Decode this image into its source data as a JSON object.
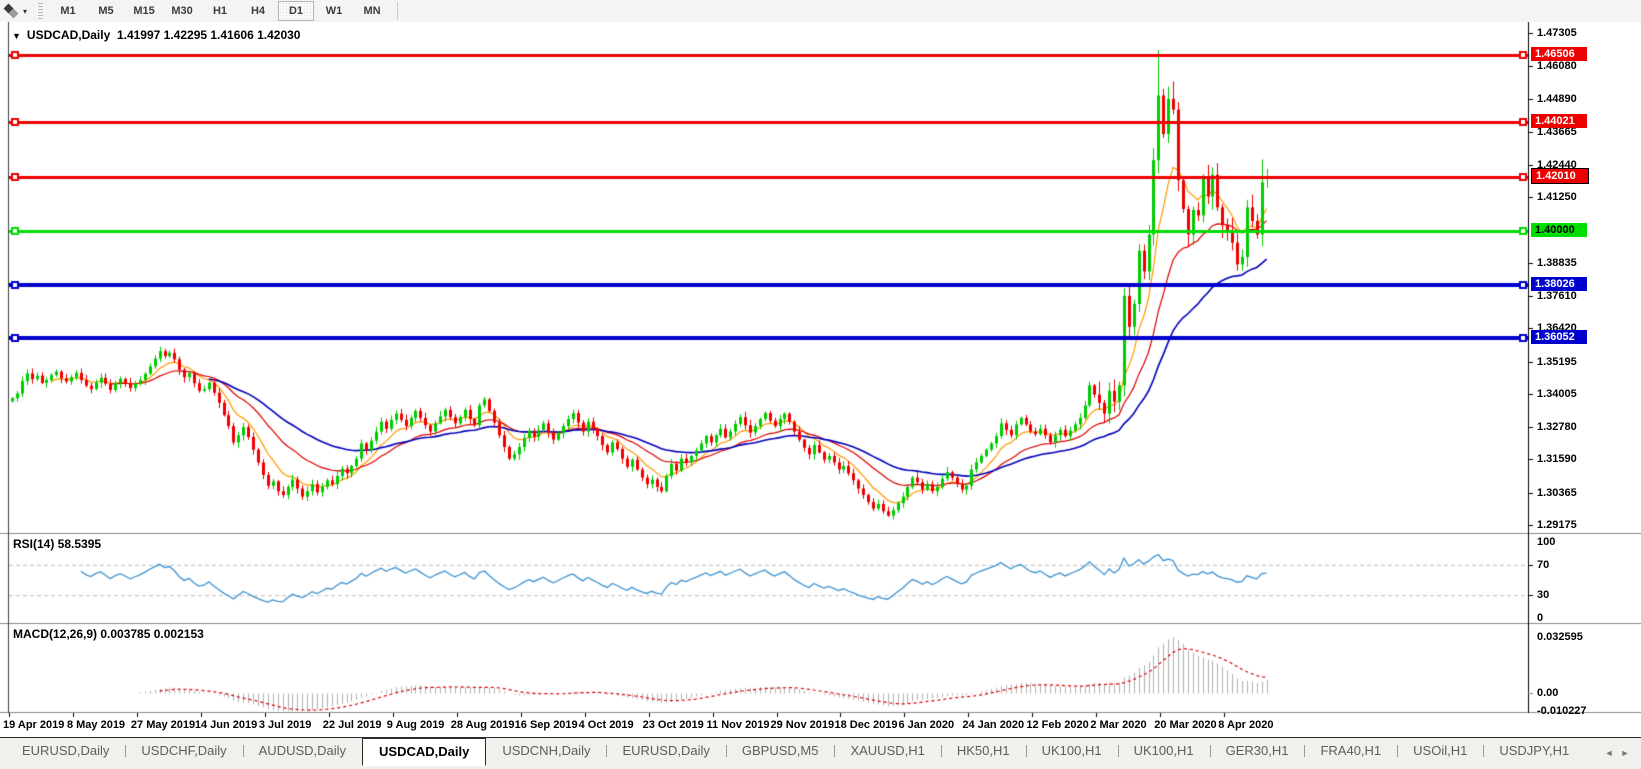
{
  "toolbar": {
    "timeframes": [
      "M1",
      "M5",
      "M15",
      "M30",
      "H1",
      "H4",
      "D1",
      "W1",
      "MN"
    ],
    "active_timeframe": "D1",
    "cursor_icon": "line-studies-cursor",
    "dropdown_icon": "▾"
  },
  "chart": {
    "title": {
      "collapse_icon": "▼",
      "symbol_period": "USDCAD,Daily",
      "ohlc": "1.41997 1.42295 1.41606 1.42030"
    },
    "price_axis_labels": [
      "1.47305",
      "1.46080",
      "1.44890",
      "1.43665",
      "1.42440",
      "1.41250",
      "1.38835",
      "1.37610",
      "1.36420",
      "1.35195",
      "1.34005",
      "1.32780",
      "1.31590",
      "1.30365",
      "1.29175"
    ],
    "h_lines": [
      {
        "label": "1.46506",
        "price": 1.46506,
        "color": "#ee0000",
        "text_color": "#ffffff",
        "width": 3,
        "boxed": false
      },
      {
        "label": "1.44021",
        "price": 1.44021,
        "color": "#ee0000",
        "text_color": "#ffffff",
        "width": 3,
        "boxed": false
      },
      {
        "label": "1.42010",
        "price": 1.4201,
        "color": "#ee0000",
        "text_color": "#ffffff",
        "width": 3,
        "boxed": true
      },
      {
        "label": "1.40000",
        "price": 1.4,
        "color": "#00dd00",
        "text_color": "#000000",
        "width": 3,
        "boxed": false
      },
      {
        "label": "1.38026",
        "price": 1.38026,
        "color": "#0000cc",
        "text_color": "#ffffff",
        "width": 4,
        "boxed": false
      },
      {
        "label": "1.36052",
        "price": 1.36052,
        "color": "#0000cc",
        "text_color": "#ffffff",
        "width": 4,
        "boxed": false
      }
    ],
    "date_labels": [
      "19 Apr 2019",
      "8 May 2019",
      "27 May 2019",
      "14 Jun 2019",
      "3 Jul 2019",
      "22 Jul 2019",
      "9 Aug 2019",
      "28 Aug 2019",
      "16 Sep 2019",
      "4 Oct 2019",
      "23 Oct 2019",
      "11 Nov 2019",
      "29 Nov 2019",
      "18 Dec 2019",
      "6 Jan 2020",
      "24 Jan 2020",
      "12 Feb 2020",
      "2 Mar 2020",
      "20 Mar 2020",
      "8 Apr 2020"
    ]
  },
  "rsi_pane": {
    "label": "RSI(14) 58.5395",
    "axis_labels": [
      "100",
      "70",
      "30",
      "0"
    ],
    "levels": [
      70,
      30
    ],
    "line_color": "#3f93d2"
  },
  "macd_pane": {
    "label": "MACD(12,26,9) 0.003785 0.002153",
    "axis_labels": [
      "0.032595",
      "0.00",
      "-0.010227"
    ],
    "histogram_color": "#b2b2b2",
    "signal_color": "#dd0000"
  },
  "tabs": {
    "items": [
      "EURUSD,Daily",
      "USDCHF,Daily",
      "AUDUSD,Daily",
      "USDCAD,Daily",
      "USDCNH,Daily",
      "EURUSD,Daily",
      "GBPUSD,M5",
      "XAUUSD,H1",
      "HK50,H1",
      "UK100,H1",
      "UK100,H1",
      "GER30,H1",
      "FRA40,H1",
      "USOil,H1",
      "USDJPY,H1"
    ],
    "active_index": 3,
    "scroll_left_icon": "◄",
    "scroll_right_icon": "►"
  },
  "chart_data": {
    "type": "candlestick",
    "symbol": "USDCAD",
    "period": "Daily",
    "x_range": [
      "19 Apr 2019",
      "21 Apr 2020"
    ],
    "ylim": [
      1.29175,
      1.47305
    ],
    "up_color": "#00cc00",
    "down_color": "#ee0000",
    "closes": [
      1.3385,
      1.3402,
      1.3448,
      1.3476,
      1.3455,
      1.3468,
      1.3441,
      1.3452,
      1.347,
      1.3483,
      1.3458,
      1.3446,
      1.3462,
      1.3478,
      1.3452,
      1.3431,
      1.3418,
      1.3442,
      1.346,
      1.3438,
      1.3415,
      1.344,
      1.3456,
      1.3441,
      1.3422,
      1.3438,
      1.3452,
      1.3475,
      1.3502,
      1.3531,
      1.3558,
      1.354,
      1.3552,
      1.3528,
      1.349,
      1.3462,
      1.3478,
      1.344,
      1.3412,
      1.3418,
      1.3442,
      1.3405,
      1.3368,
      1.3322,
      1.3282,
      1.3222,
      1.3248,
      1.3278,
      1.3242,
      1.3195,
      1.3148,
      1.3102,
      1.3062,
      1.3078,
      1.3042,
      1.3028,
      1.3058,
      1.3085,
      1.3052,
      1.3022,
      1.3042,
      1.3068,
      1.3038,
      1.3058,
      1.3082,
      1.3068,
      1.3098,
      1.3125,
      1.3108,
      1.3135,
      1.3162,
      1.3218,
      1.3192,
      1.3228,
      1.3262,
      1.3298,
      1.3272,
      1.3305,
      1.3328,
      1.3305,
      1.3282,
      1.3312,
      1.3338,
      1.3312,
      1.3285,
      1.3262,
      1.3292,
      1.3318,
      1.3342,
      1.3315,
      1.3292,
      1.3315,
      1.3342,
      1.3308,
      1.3285,
      1.3358,
      1.338,
      1.3338,
      1.3295,
      1.3248,
      1.3205,
      1.3162,
      1.3178,
      1.3205,
      1.3238,
      1.3265,
      1.3242,
      1.3268,
      1.3292,
      1.3258,
      1.3232,
      1.3255,
      1.3282,
      1.3308,
      1.333,
      1.3295,
      1.3262,
      1.3298,
      1.3272,
      1.3245,
      1.3212,
      1.3185,
      1.3222,
      1.3198,
      1.3162,
      1.3132,
      1.3158,
      1.3122,
      1.3092,
      1.3068,
      1.3085,
      1.3058,
      1.3042,
      1.3098,
      1.3142,
      1.3118,
      1.3162,
      1.3148,
      1.3172,
      1.3192,
      1.3218,
      1.3245,
      1.3222,
      1.3248,
      1.3272,
      1.324,
      1.3262,
      1.329,
      1.3315,
      1.3285,
      1.3258,
      1.3282,
      1.3308,
      1.333,
      1.3302,
      1.3282,
      1.3308,
      1.3328,
      1.3298,
      1.3262,
      1.3232,
      1.3202,
      1.3178,
      1.3212,
      1.3185,
      1.3158,
      1.3172,
      1.3148,
      1.3122,
      1.3135,
      1.3108,
      1.3082,
      1.3052,
      1.3028,
      1.3002,
      1.2978,
      1.2995,
      1.2968,
      1.2952,
      1.2972,
      1.2998,
      1.3022,
      1.3058,
      1.3092,
      1.3075,
      1.3048,
      1.3068,
      1.3042,
      1.3058,
      1.3088,
      1.3112,
      1.3092,
      1.3068,
      1.3048,
      1.3062,
      1.3122,
      1.3148,
      1.3172,
      1.3195,
      1.3218,
      1.3245,
      1.3292,
      1.3268,
      1.3248,
      1.3288,
      1.3312,
      1.3288,
      1.3262,
      1.3252,
      1.3272,
      1.3248,
      1.3222,
      1.3248,
      1.3268,
      1.3245,
      1.3265,
      1.3288,
      1.3312,
      1.3358,
      1.3432,
      1.3398,
      1.3368,
      1.3328,
      1.3412,
      1.3372,
      1.3432,
      1.3762,
      1.3648,
      1.3732,
      1.3928,
      1.3852,
      1.3988,
      1.4262,
      1.45,
      1.4358,
      1.4488,
      1.4448,
      1.4188,
      1.4082,
      1.3988,
      1.4078,
      1.4058,
      1.4198,
      1.4128,
      1.4208,
      1.4088,
      1.4022,
      1.3998,
      1.3958,
      1.3878,
      1.3905,
      1.4088,
      1.4038,
      1.3988,
      1.418,
      1.4203
    ],
    "last_bar": {
      "open": 1.41997,
      "high": 1.42295,
      "low": 1.41606,
      "close": 1.4203
    },
    "wick_overrides": {
      "233": {
        "high": 1.4668
      },
      "236": {
        "high": 1.4552
      },
      "249": {
        "low": 1.3855
      },
      "254": {
        "high": 1.4265
      }
    },
    "h_line_prices": [
      1.46506,
      1.44021,
      1.4201,
      1.4,
      1.38026,
      1.36052
    ],
    "moving_averages": [
      {
        "period": 8,
        "type": "ema",
        "color": "#ff9900"
      },
      {
        "period": 20,
        "type": "ema",
        "color": "#dd0000"
      },
      {
        "period": 40,
        "type": "ema",
        "color": "#0000bb"
      }
    ],
    "rsi": {
      "period": 14,
      "current": 58.5395
    },
    "macd": {
      "fast": 12,
      "slow": 26,
      "signal": 9,
      "current_macd": 0.003785,
      "current_signal": 0.002153
    }
  }
}
